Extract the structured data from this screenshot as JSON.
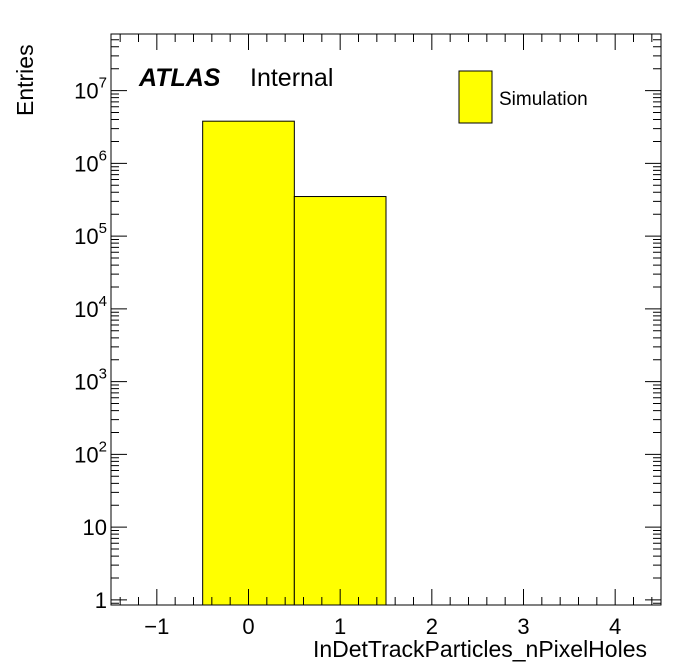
{
  "chart_data": {
    "type": "bar",
    "histogram": true,
    "bin_edges": [
      -0.5,
      0.5,
      1.5
    ],
    "values": [
      3800000,
      350000
    ],
    "xlim": [
      -1.5,
      4.5
    ],
    "ylim": [
      0.85,
      60000000
    ],
    "yscale": "log",
    "x_ticks": [
      -1,
      0,
      1,
      2,
      3,
      4
    ],
    "x_tick_labels": [
      "−1",
      "0",
      "1",
      "2",
      "3",
      "4"
    ],
    "y_ticks": [
      {
        "value": 1,
        "base": "1",
        "exp": ""
      },
      {
        "value": 10,
        "base": "10",
        "exp": ""
      },
      {
        "value": 100,
        "base": "10",
        "exp": "2"
      },
      {
        "value": 1000,
        "base": "10",
        "exp": "3"
      },
      {
        "value": 10000,
        "base": "10",
        "exp": "4"
      },
      {
        "value": 100000,
        "base": "10",
        "exp": "5"
      },
      {
        "value": 1000000,
        "base": "10",
        "exp": "6"
      },
      {
        "value": 10000000,
        "base": "10",
        "exp": "7"
      }
    ],
    "xlabel": "InDetTrackParticles_nPixelHoles",
    "ylabel": "Entries",
    "label_main": "ATLAS",
    "label_sub": "Internal",
    "legend": {
      "placement": "top-right",
      "entries": [
        {
          "name": "Simulation",
          "color": "#ffff00"
        }
      ]
    },
    "fill_color": "#ffff00",
    "edge_color": "#000000",
    "grid": false
  }
}
